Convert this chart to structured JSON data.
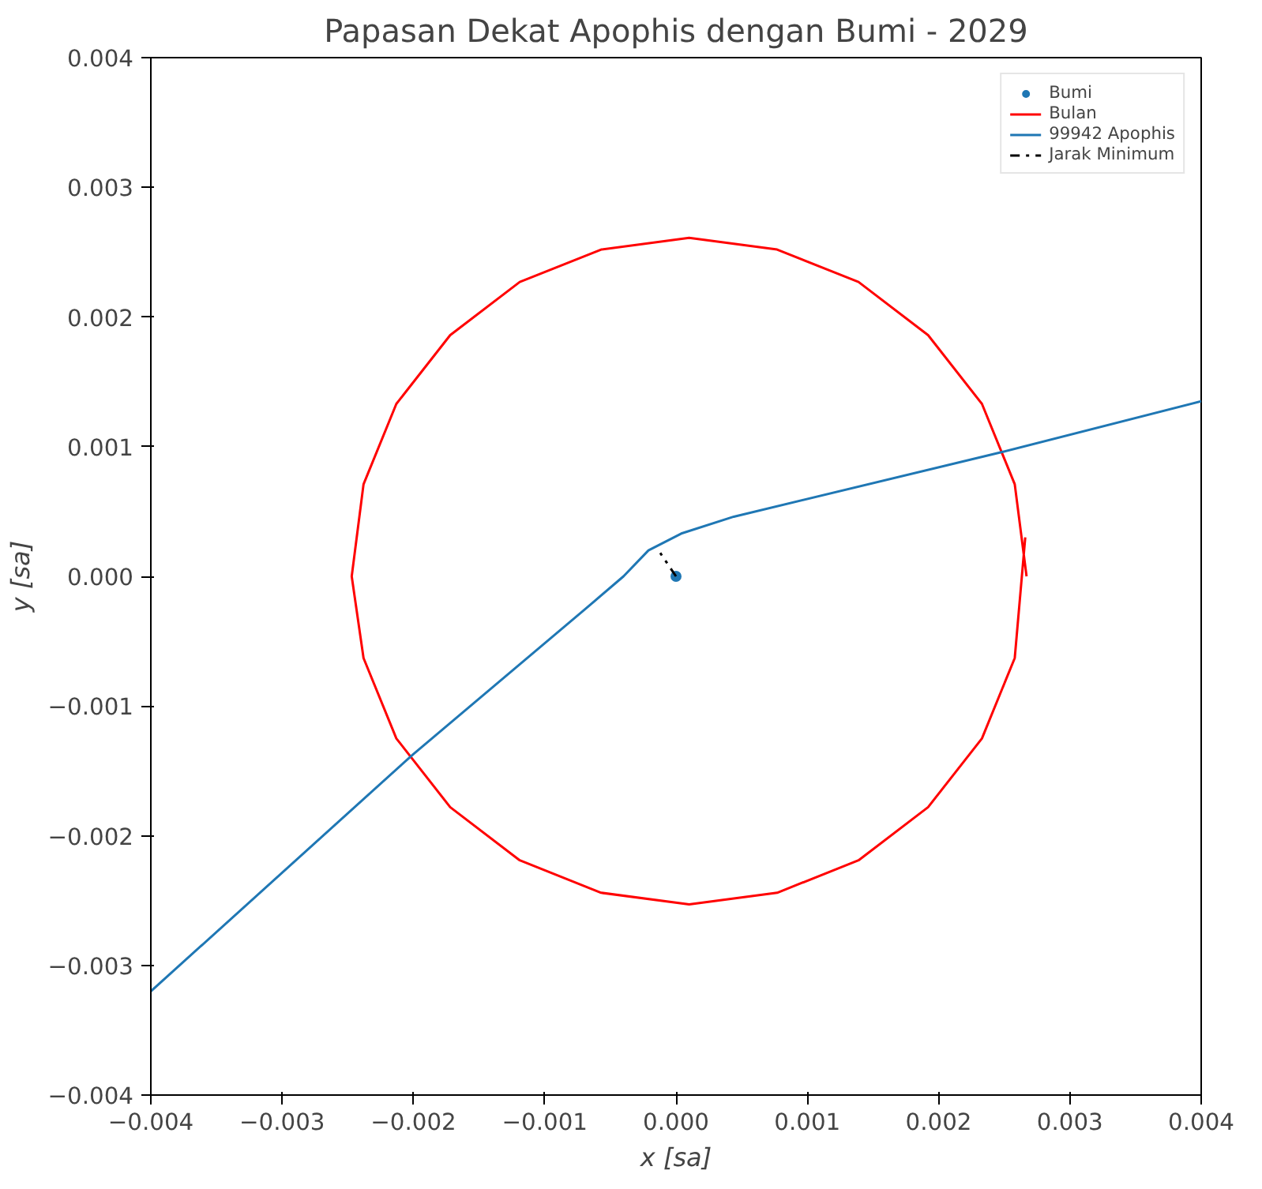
{
  "chart_data": {
    "type": "scatter",
    "title": "Papasan Dekat Apophis dengan Bumi - 2029",
    "xlabel": "x [sa]",
    "ylabel": "y [sa]",
    "xlim": [
      -0.004,
      0.004
    ],
    "ylim": [
      -0.004,
      0.004
    ],
    "xticks": [
      {
        "value": -0.004,
        "label": "−0.004"
      },
      {
        "value": -0.003,
        "label": "−0.003"
      },
      {
        "value": -0.002,
        "label": "−0.002"
      },
      {
        "value": -0.001,
        "label": "−0.001"
      },
      {
        "value": 0,
        "label": "0.000"
      },
      {
        "value": 0.001,
        "label": "0.001"
      },
      {
        "value": 0.002,
        "label": "0.002"
      },
      {
        "value": 0.003,
        "label": "0.003"
      },
      {
        "value": 0.004,
        "label": "0.004"
      }
    ],
    "yticks": [
      {
        "value": -0.004,
        "label": "−0.004"
      },
      {
        "value": -0.003,
        "label": "−0.003"
      },
      {
        "value": -0.002,
        "label": "−0.002"
      },
      {
        "value": -0.001,
        "label": "−0.001"
      },
      {
        "value": 0,
        "label": "0.000"
      },
      {
        "value": 0.001,
        "label": "0.001"
      },
      {
        "value": 0.002,
        "label": "0.002"
      },
      {
        "value": 0.003,
        "label": "0.003"
      },
      {
        "value": 0.004,
        "label": "0.004"
      }
    ],
    "legend": "top right",
    "grid": false,
    "series": [
      {
        "name": "Bumi",
        "marker": "circle",
        "color": "#1f77b4",
        "x": [
          0
        ],
        "values": [
          0
        ]
      },
      {
        "name": "Bulan",
        "type": "line",
        "color": "#ff0000",
        "x": [
          0.00267,
          0.00258,
          0.00233,
          0.00192,
          0.00139,
          0.00077,
          0.0001,
          -0.00057,
          -0.00119,
          -0.00172,
          -0.00213,
          -0.00238,
          -0.00247,
          -0.00238,
          -0.00213,
          -0.00172,
          -0.00119,
          -0.00057,
          0.0001,
          0.00077,
          0.00139,
          0.00192,
          0.00233,
          0.00258,
          0.00266
        ],
        "values": [
          0.0,
          0.00071,
          0.00133,
          0.00186,
          0.00227,
          0.00252,
          0.00261,
          0.00252,
          0.00227,
          0.00186,
          0.00133,
          0.00071,
          0.0,
          -0.00063,
          -0.00125,
          -0.00178,
          -0.00219,
          -0.00244,
          -0.00253,
          -0.00244,
          -0.00219,
          -0.00178,
          -0.00125,
          -0.00063,
          0.0003
        ]
      },
      {
        "name": "99942 Apophis",
        "type": "line",
        "color": "#1f77b4",
        "x": [
          -0.004,
          -0.002,
          -0.0007,
          -0.0004,
          -0.00021,
          4e-05,
          0.00044,
          0.00249,
          0.004
        ],
        "values": [
          -0.0032,
          -0.00137,
          -0.00026,
          0.0,
          0.0002,
          0.00033,
          0.00046,
          0.00096,
          0.00135
        ]
      },
      {
        "name": "Jarak Minimum",
        "type": "line",
        "line_style": "dashed",
        "color": "#000000",
        "x": [
          0,
          -0.00012
        ],
        "values": [
          0,
          0.00018
        ]
      }
    ]
  }
}
